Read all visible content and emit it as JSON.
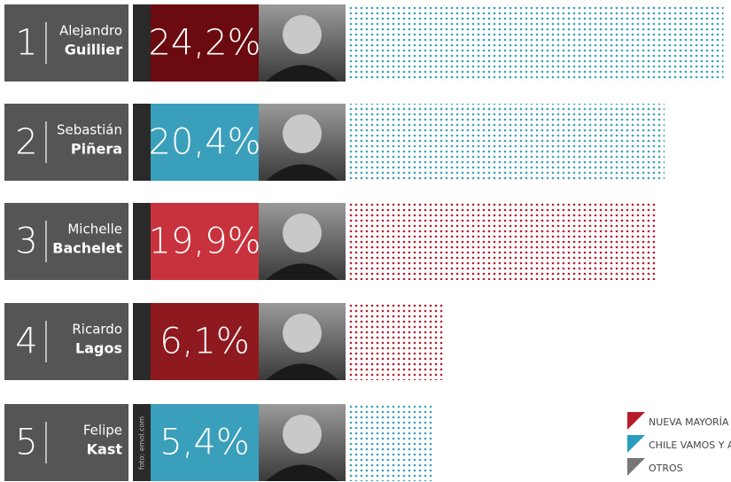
{
  "chart_data": {
    "type": "bar",
    "orientation": "horizontal",
    "ranks": [
      "1",
      "2",
      "3",
      "4",
      "5"
    ],
    "first_names": [
      "Alejandro",
      "Sebastián",
      "Michelle",
      "Ricardo",
      "Felipe"
    ],
    "categories": [
      "Guillier",
      "Piñera",
      "Bachelet",
      "Lagos",
      "Kast"
    ],
    "values": [
      24.2,
      20.4,
      19.9,
      6.1,
      5.4
    ],
    "value_labels": [
      "24,2%",
      "20,4%",
      "19,9%",
      "6,1%",
      "5,4%"
    ],
    "colors": [
      "#3a9fba",
      "#3a9fba",
      "#b81c2c",
      "#b81c2c",
      "#3a9fba"
    ],
    "box_colors": [
      "#6b0a0f",
      "#3a9fba",
      "#c8323c",
      "#8e1a1f",
      "#3a9fba"
    ],
    "credit": "foto: emol.com",
    "legend": [
      {
        "name": "NUEVA MAYORÍA Y",
        "color": "#b81c2c"
      },
      {
        "name": "CHILE VAMOS Y AF",
        "color": "#2a9dc0"
      },
      {
        "name": "OTROS",
        "color": "#777777"
      }
    ]
  }
}
